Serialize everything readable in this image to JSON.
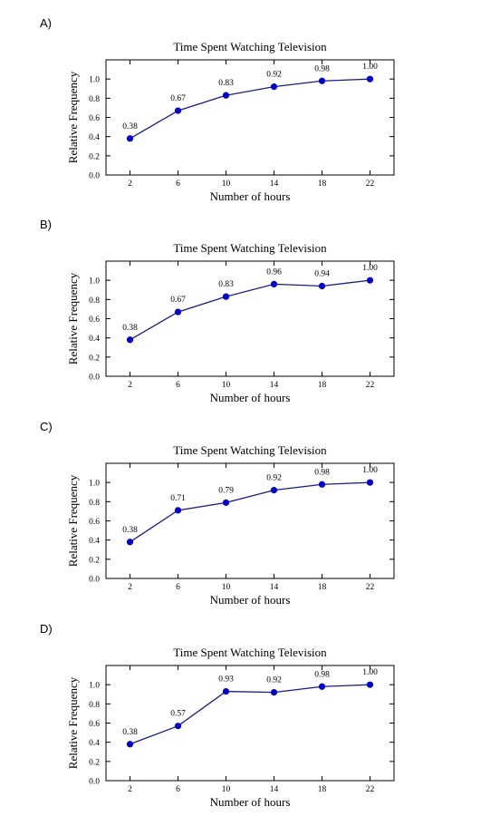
{
  "options": [
    {
      "label": "A)"
    },
    {
      "label": "B)"
    },
    {
      "label": "C)"
    },
    {
      "label": "D)"
    }
  ],
  "colors": {
    "line": "#1a1a8c",
    "marker": "#0000cc",
    "axis": "#000000"
  },
  "chart_data": [
    {
      "type": "line",
      "title": "Time Spent Watching Television",
      "xlabel": "Number of hours",
      "ylabel": "Relative Frequency",
      "x": [
        2,
        6,
        10,
        14,
        18,
        22
      ],
      "values": [
        0.38,
        0.67,
        0.83,
        0.92,
        0.98,
        1.0
      ],
      "data_labels": [
        "0.38",
        "0.67",
        "0.83",
        "0.92",
        "0.98",
        "1.00"
      ],
      "xticks": [
        "2",
        "6",
        "10",
        "14",
        "18",
        "22"
      ],
      "yticks": [
        "0.0",
        "0.2",
        "0.4",
        "0.6",
        "0.8",
        "1.0"
      ],
      "xlim": [
        0,
        24
      ],
      "ylim": [
        0,
        1.2
      ],
      "grid": false
    },
    {
      "type": "line",
      "title": "Time Spent Watching Television",
      "xlabel": "Number of hours",
      "ylabel": "Relative Frequency",
      "x": [
        2,
        6,
        10,
        14,
        18,
        22
      ],
      "values": [
        0.38,
        0.67,
        0.83,
        0.96,
        0.94,
        1.0
      ],
      "data_labels": [
        "0.38",
        "0.67",
        "0.83",
        "0.96",
        "0.94",
        "1.00"
      ],
      "xticks": [
        "2",
        "6",
        "10",
        "14",
        "18",
        "22"
      ],
      "yticks": [
        "0.0",
        "0.2",
        "0.4",
        "0.6",
        "0.8",
        "1.0"
      ],
      "xlim": [
        0,
        24
      ],
      "ylim": [
        0,
        1.2
      ],
      "grid": false
    },
    {
      "type": "line",
      "title": "Time Spent Watching Television",
      "xlabel": "Number of hours",
      "ylabel": "Relative Frequency",
      "x": [
        2,
        6,
        10,
        14,
        18,
        22
      ],
      "values": [
        0.38,
        0.71,
        0.79,
        0.92,
        0.98,
        1.0
      ],
      "data_labels": [
        "0.38",
        "0.71",
        "0.79",
        "0.92",
        "0.98",
        "1.00"
      ],
      "xticks": [
        "2",
        "6",
        "10",
        "14",
        "18",
        "22"
      ],
      "yticks": [
        "0.0",
        "0.2",
        "0.4",
        "0.6",
        "0.8",
        "1.0"
      ],
      "xlim": [
        0,
        24
      ],
      "ylim": [
        0,
        1.2
      ],
      "grid": false
    },
    {
      "type": "line",
      "title": "Time Spent Watching Television",
      "xlabel": "Number of hours",
      "ylabel": "Relative Frequency",
      "x": [
        2,
        6,
        10,
        14,
        18,
        22
      ],
      "values": [
        0.38,
        0.57,
        0.93,
        0.92,
        0.98,
        1.0
      ],
      "data_labels": [
        "0.38",
        "0.57",
        "0.93",
        "0.92",
        "0.98",
        "1.00"
      ],
      "xticks": [
        "2",
        "6",
        "10",
        "14",
        "18",
        "22"
      ],
      "yticks": [
        "0.0",
        "0.2",
        "0.4",
        "0.6",
        "0.8",
        "1.0"
      ],
      "xlim": [
        0,
        24
      ],
      "ylim": [
        0,
        1.2
      ],
      "grid": false
    }
  ]
}
